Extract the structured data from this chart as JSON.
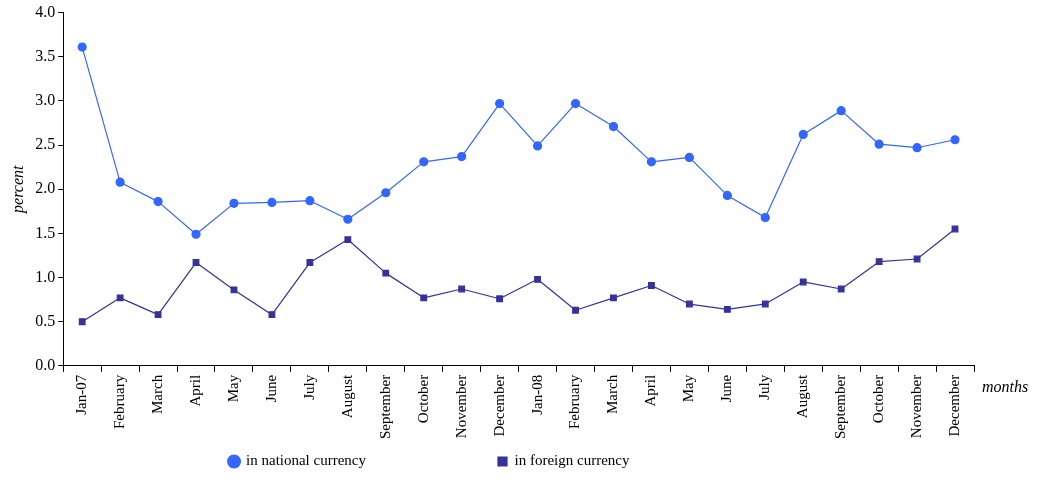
{
  "chart_data": {
    "type": "line",
    "xlabel": "months",
    "ylabel": "percent",
    "categories": [
      "Jan-07",
      "February",
      "March",
      "April",
      "May",
      "June",
      "July",
      "August",
      "September",
      "October",
      "November",
      "December",
      "Jan-08",
      "February",
      "March",
      "April",
      "May",
      "June",
      "July",
      "August",
      "September",
      "October",
      "November",
      "December"
    ],
    "series": [
      {
        "name": "in national currency",
        "color": "#3366ff",
        "marker": "circle",
        "values": [
          3.61,
          2.08,
          1.86,
          1.49,
          1.84,
          1.85,
          1.87,
          1.66,
          1.96,
          2.31,
          2.37,
          2.97,
          2.49,
          2.97,
          2.71,
          2.31,
          2.36,
          1.93,
          1.68,
          2.62,
          2.89,
          2.51,
          2.47,
          2.56
        ]
      },
      {
        "name": "in foreign currency",
        "color": "#333399",
        "marker": "square",
        "values": [
          0.5,
          0.77,
          0.58,
          1.17,
          0.86,
          0.58,
          1.17,
          1.43,
          1.05,
          0.77,
          0.87,
          0.76,
          0.98,
          0.63,
          0.77,
          0.91,
          0.7,
          0.64,
          0.7,
          0.95,
          0.87,
          1.18,
          1.21,
          1.55
        ]
      }
    ],
    "ylim": [
      0,
      4
    ],
    "yticks": [
      {
        "value": 0,
        "label": "0.0"
      },
      {
        "value": 0.5,
        "label": "0.5"
      },
      {
        "value": 1,
        "label": "1.0"
      },
      {
        "value": 1.5,
        "label": "1.5"
      },
      {
        "value": 2,
        "label": "2.0"
      },
      {
        "value": 2.5,
        "label": "2.5"
      },
      {
        "value": 3,
        "label": "3.0"
      },
      {
        "value": 3.5,
        "label": "3.5"
      },
      {
        "value": 4,
        "label": "4.0"
      }
    ],
    "grid": false,
    "legend": "bottom",
    "line_style": "solid"
  }
}
